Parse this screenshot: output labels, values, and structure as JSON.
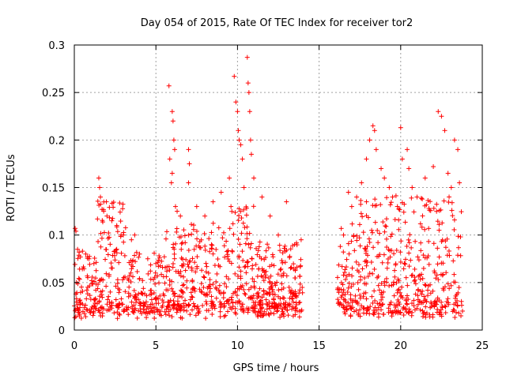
{
  "chart_data": {
    "type": "scatter",
    "title": "Day 054 of 2015, Rate Of TEC Index for receiver tor2",
    "xlabel": "GPS time / hours",
    "ylabel": "ROTI / TECUs",
    "xlim": [
      0,
      25
    ],
    "ylim": [
      0,
      0.3
    ],
    "xticks": [
      0,
      5,
      10,
      15,
      20,
      25
    ],
    "xtick_labels": [
      "0",
      "5",
      "10",
      "15",
      "20",
      "25"
    ],
    "yticks": [
      0,
      0.05,
      0.1,
      0.15,
      0.2,
      0.25,
      0.3
    ],
    "ytick_labels": [
      "0",
      "0.05",
      "0.1",
      "0.15",
      "0.2",
      "0.25",
      "0.3"
    ],
    "grid": true,
    "marker": "+",
    "marker_color": "#ff0000",
    "data_gap_hours": [
      14.0,
      16.1
    ],
    "series": [
      {
        "name": "ROTI",
        "points": [
          [
            0.05,
            0.107
          ],
          [
            0.1,
            0.104
          ],
          [
            0.2,
            0.085
          ],
          [
            0.3,
            0.082
          ],
          [
            0.5,
            0.083
          ],
          [
            0.7,
            0.08
          ],
          [
            0.9,
            0.075
          ],
          [
            1.2,
            0.07
          ],
          [
            1.5,
            0.16
          ],
          [
            1.55,
            0.15
          ],
          [
            1.6,
            0.14
          ],
          [
            1.7,
            0.127
          ],
          [
            1.8,
            0.125
          ],
          [
            2.0,
            0.12
          ],
          [
            2.3,
            0.115
          ],
          [
            2.6,
            0.11
          ],
          [
            3.0,
            0.1
          ],
          [
            3.5,
            0.095
          ],
          [
            3.7,
            0.1
          ],
          [
            4.0,
            0.08
          ],
          [
            4.5,
            0.075
          ],
          [
            5.0,
            0.07
          ],
          [
            5.8,
            0.257
          ],
          [
            5.85,
            0.18
          ],
          [
            6.0,
            0.23
          ],
          [
            6.05,
            0.22
          ],
          [
            6.1,
            0.2
          ],
          [
            6.15,
            0.19
          ],
          [
            6.0,
            0.165
          ],
          [
            5.95,
            0.155
          ],
          [
            6.2,
            0.13
          ],
          [
            6.3,
            0.125
          ],
          [
            6.5,
            0.12
          ],
          [
            7.0,
            0.19
          ],
          [
            7.05,
            0.175
          ],
          [
            7.0,
            0.155
          ],
          [
            7.5,
            0.13
          ],
          [
            8.0,
            0.12
          ],
          [
            8.5,
            0.135
          ],
          [
            9.0,
            0.145
          ],
          [
            9.5,
            0.16
          ],
          [
            9.6,
            0.13
          ],
          [
            9.8,
            0.267
          ],
          [
            9.9,
            0.24
          ],
          [
            10.0,
            0.23
          ],
          [
            10.05,
            0.21
          ],
          [
            10.1,
            0.2
          ],
          [
            10.2,
            0.195
          ],
          [
            10.3,
            0.18
          ],
          [
            10.4,
            0.15
          ],
          [
            10.6,
            0.287
          ],
          [
            10.65,
            0.26
          ],
          [
            10.7,
            0.25
          ],
          [
            10.75,
            0.23
          ],
          [
            10.8,
            0.2
          ],
          [
            10.85,
            0.185
          ],
          [
            11.0,
            0.16
          ],
          [
            11.5,
            0.14
          ],
          [
            12.0,
            0.12
          ],
          [
            12.5,
            0.1
          ],
          [
            13.0,
            0.135
          ],
          [
            13.5,
            0.09
          ],
          [
            13.9,
            0.095
          ],
          [
            16.5,
            0.1
          ],
          [
            16.8,
            0.145
          ],
          [
            17.0,
            0.13
          ],
          [
            17.3,
            0.14
          ],
          [
            17.6,
            0.155
          ],
          [
            17.9,
            0.18
          ],
          [
            18.1,
            0.2
          ],
          [
            18.3,
            0.215
          ],
          [
            18.4,
            0.21
          ],
          [
            18.5,
            0.19
          ],
          [
            18.8,
            0.17
          ],
          [
            19.0,
            0.16
          ],
          [
            19.3,
            0.15
          ],
          [
            19.5,
            0.14
          ],
          [
            19.8,
            0.13
          ],
          [
            20.0,
            0.213
          ],
          [
            20.1,
            0.18
          ],
          [
            20.4,
            0.19
          ],
          [
            20.5,
            0.17
          ],
          [
            20.7,
            0.15
          ],
          [
            21.0,
            0.14
          ],
          [
            21.5,
            0.16
          ],
          [
            22.0,
            0.172
          ],
          [
            22.3,
            0.23
          ],
          [
            22.5,
            0.225
          ],
          [
            22.7,
            0.21
          ],
          [
            22.9,
            0.165
          ],
          [
            23.1,
            0.15
          ],
          [
            23.3,
            0.2
          ],
          [
            23.5,
            0.19
          ],
          [
            23.6,
            0.155
          ]
        ]
      }
    ]
  }
}
